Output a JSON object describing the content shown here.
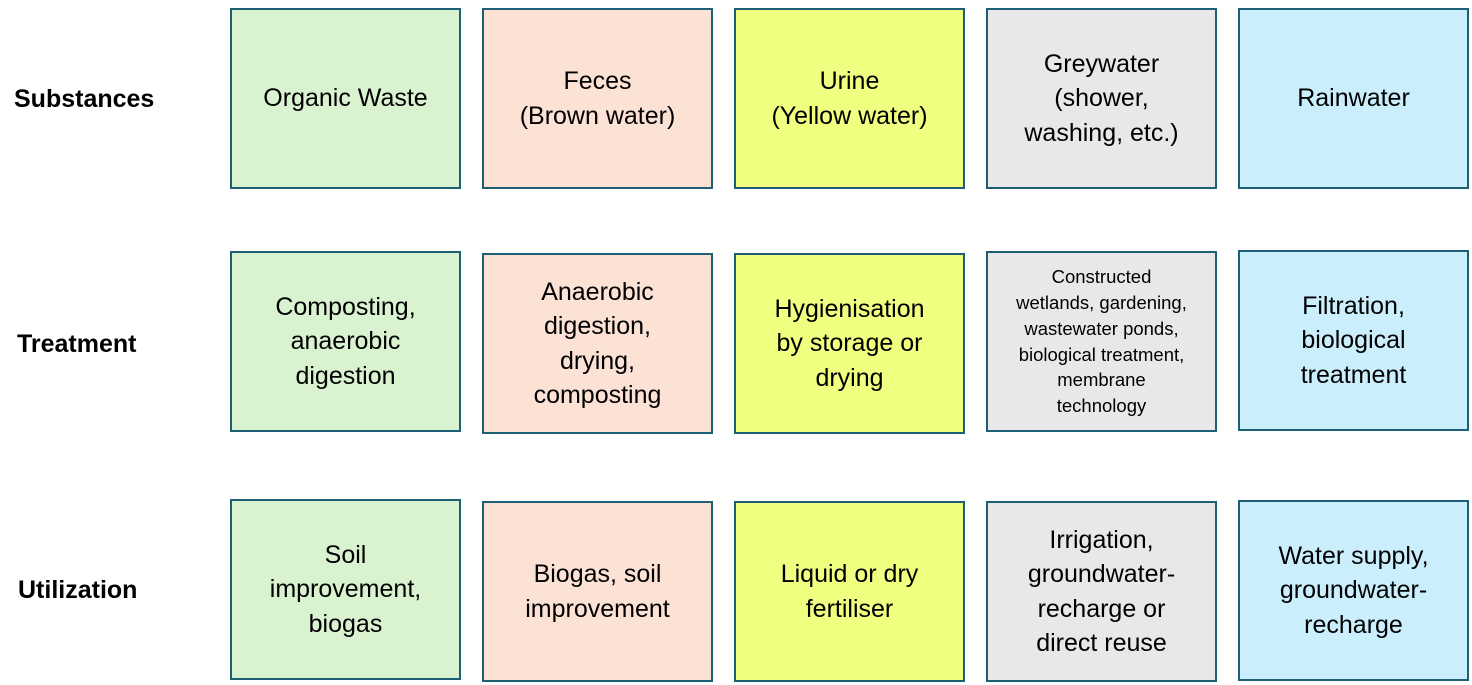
{
  "rows": [
    {
      "label": "Substances",
      "cells": [
        {
          "text": "Organic Waste"
        },
        {
          "text": "Feces\n(Brown water)"
        },
        {
          "text": "Urine\n(Yellow water)"
        },
        {
          "text": "Greywater\n(shower,\nwashing, etc.)"
        },
        {
          "text": "Rainwater"
        }
      ]
    },
    {
      "label": "Treatment",
      "cells": [
        {
          "text": "Composting,\nanaerobic\ndigestion"
        },
        {
          "text": "Anaerobic\ndigestion,\ndrying,\ncomposting"
        },
        {
          "text": "Hygienisation\nby storage or\ndrying"
        },
        {
          "text": "Constructed\nwetlands, gardening,\nwastewater ponds,\nbiological treatment,\nmembrane\ntechnology"
        },
        {
          "text": "Filtration,\nbiological\ntreatment"
        }
      ]
    },
    {
      "label": "Utilization",
      "cells": [
        {
          "text": "Soil\nimprovement,\nbiogas"
        },
        {
          "text": "Biogas, soil\nimprovement"
        },
        {
          "text": "Liquid or dry\nfertiliser"
        },
        {
          "text": "Irrigation,\ngroundwater-\nrecharge or\ndirect reuse"
        },
        {
          "text": "Water supply,\ngroundwater-\nrecharge"
        }
      ]
    }
  ],
  "colors": {
    "organic": "#d9f2d0",
    "feces": "#fbe2d5",
    "urine": "#f0ff80",
    "greywater": "#e8e8e8",
    "rainwater": "#caeefb",
    "border": "#1f5f75"
  }
}
